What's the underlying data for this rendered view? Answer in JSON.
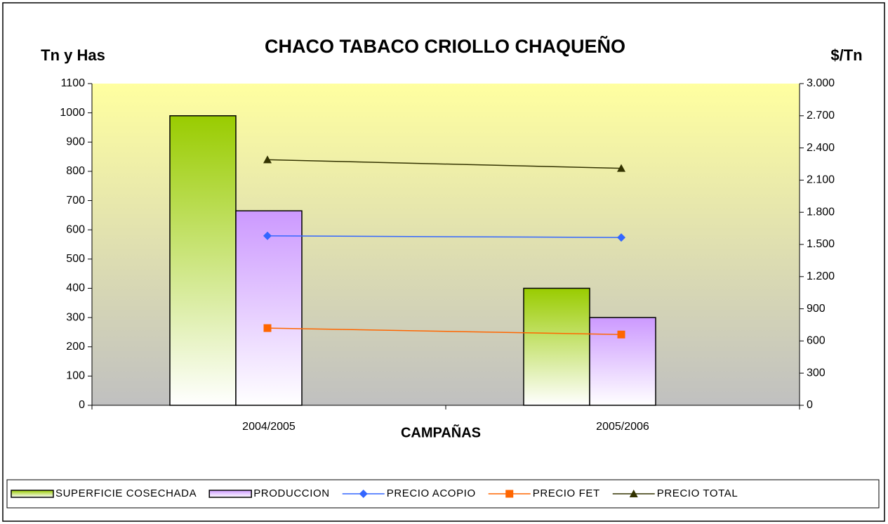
{
  "chart_data": {
    "type": "bar",
    "title": "CHACO TABACO CRIOLLO CHAQUEÑO",
    "y_label": "Tn y Has",
    "y2_label": "$/Tn",
    "x_label": "CAMPAÑAS",
    "categories": [
      "2004/2005",
      "2005/2006"
    ],
    "series": [
      {
        "name": "SUPERFICIE COSECHADA",
        "type": "bar",
        "color": "#99cc00",
        "values": [
          990,
          400
        ]
      },
      {
        "name": "PRODUCCION",
        "type": "bar",
        "color": "#cc99ff",
        "values": [
          665,
          300
        ]
      },
      {
        "name": "PRECIO ACOPIO",
        "type": "line",
        "marker": "diamond",
        "color": "#3366ff",
        "axis": "y2",
        "values": [
          1580,
          1565
        ]
      },
      {
        "name": "PRECIO FET",
        "type": "line",
        "marker": "square",
        "color": "#ff6600",
        "axis": "y2",
        "values": [
          720,
          660
        ]
      },
      {
        "name": "PRECIO TOTAL",
        "type": "line",
        "marker": "triangle",
        "color": "#333300",
        "axis": "y2",
        "values": [
          2290,
          2210
        ]
      }
    ],
    "ylim": [
      0,
      1100
    ],
    "yticks": [
      0,
      100,
      200,
      300,
      400,
      500,
      600,
      700,
      800,
      900,
      1000,
      1100
    ],
    "y2lim": [
      0,
      3000
    ],
    "y2ticks": [
      0,
      300,
      600,
      {
        "value": 900,
        "label": "900"
      },
      {
        "value": 1200,
        "label": "1.200"
      },
      {
        "value": 1500,
        "label": "1.500"
      },
      {
        "value": 1800,
        "label": "1.800"
      },
      {
        "value": 2100,
        "label": "2.100"
      },
      {
        "value": 2400,
        "label": "2.400"
      },
      {
        "value": 2700,
        "label": "2.700"
      },
      {
        "value": 3000,
        "label": "3.000"
      }
    ],
    "legend": "bottom"
  }
}
